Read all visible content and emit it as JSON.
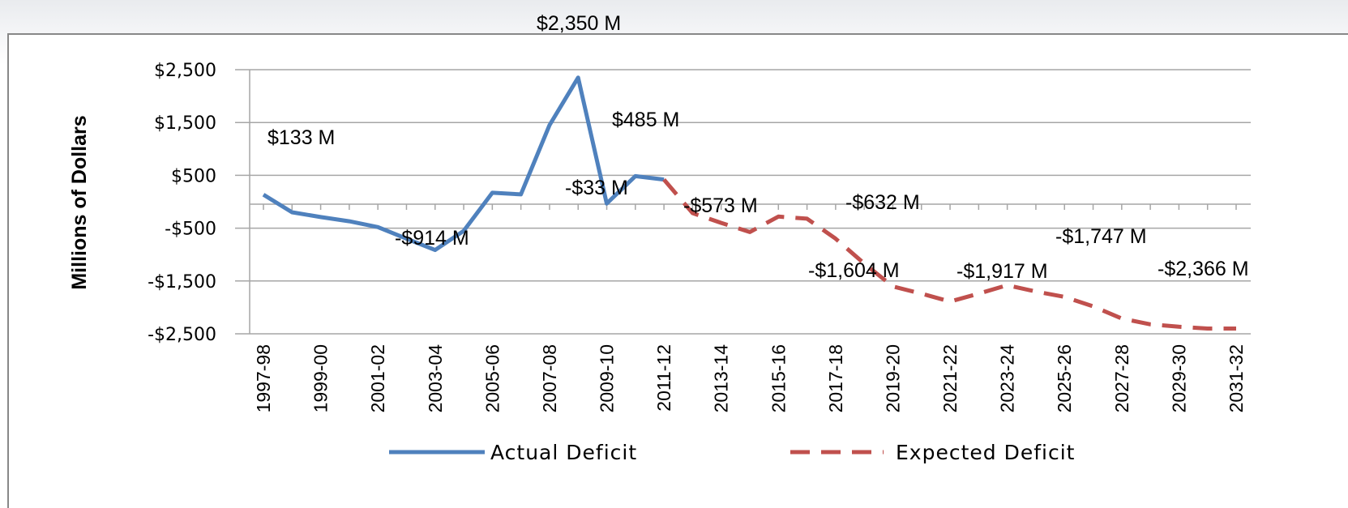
{
  "chart_data": {
    "type": "line",
    "y_label": "Millions of Dollars",
    "categories": [
      "1997-98",
      null,
      "1999-00",
      null,
      "2001-02",
      null,
      "2003-04",
      null,
      "2005-06",
      null,
      "2007-08",
      null,
      "2009-10",
      null,
      "2011-12",
      null,
      "2013-14",
      null,
      "2015-16",
      null,
      "2017-18",
      null,
      "2019-20",
      null,
      "2021-22",
      null,
      "2023-24",
      null,
      "2025-26",
      null,
      "2027-28",
      null,
      "2029-30",
      null,
      "2031-32"
    ],
    "series": [
      {
        "name": "Actual Deficit",
        "color": "#4f81bd",
        "dash": "solid",
        "values": [
          133,
          -200,
          -290,
          -370,
          -480,
          -700,
          -914,
          -550,
          170,
          140,
          1450,
          2350,
          -33,
          485,
          420,
          null,
          null,
          null,
          null,
          null,
          null,
          null,
          null,
          null,
          null,
          null,
          null,
          null,
          null,
          null,
          null,
          null,
          null,
          null,
          null
        ]
      },
      {
        "name": "Expected Deficit",
        "color": "#c0504d",
        "dash": "dashed",
        "values": [
          null,
          null,
          null,
          null,
          null,
          null,
          null,
          null,
          null,
          null,
          null,
          null,
          null,
          null,
          420,
          -215,
          -400,
          -573,
          -280,
          -320,
          -700,
          -1170,
          -1604,
          -1740,
          -1890,
          -1740,
          -1580,
          -1700,
          -1800,
          -1980,
          -2210,
          -2320,
          -2366,
          -2400,
          -2400
        ]
      }
    ],
    "annotations": [
      "$2,350 M",
      "$133 M",
      "$485 M",
      "-$33 M",
      "-$914 M",
      "-$573 M",
      "-$632 M",
      "-$1,604 M",
      "-$1,917 M",
      "-$1,747 M",
      "-$2,366 M"
    ],
    "ylim": [
      -2500,
      2500
    ],
    "yticks": [
      {
        "value": 2500,
        "label": "$2,500"
      },
      {
        "value": 1500,
        "label": "$1,500"
      },
      {
        "value": 500,
        "label": "$500"
      },
      {
        "value": -500,
        "label": "-$500"
      },
      {
        "value": -1500,
        "label": "-$1,500"
      },
      {
        "value": -2500,
        "label": "-$2,500"
      }
    ],
    "grid": true
  }
}
